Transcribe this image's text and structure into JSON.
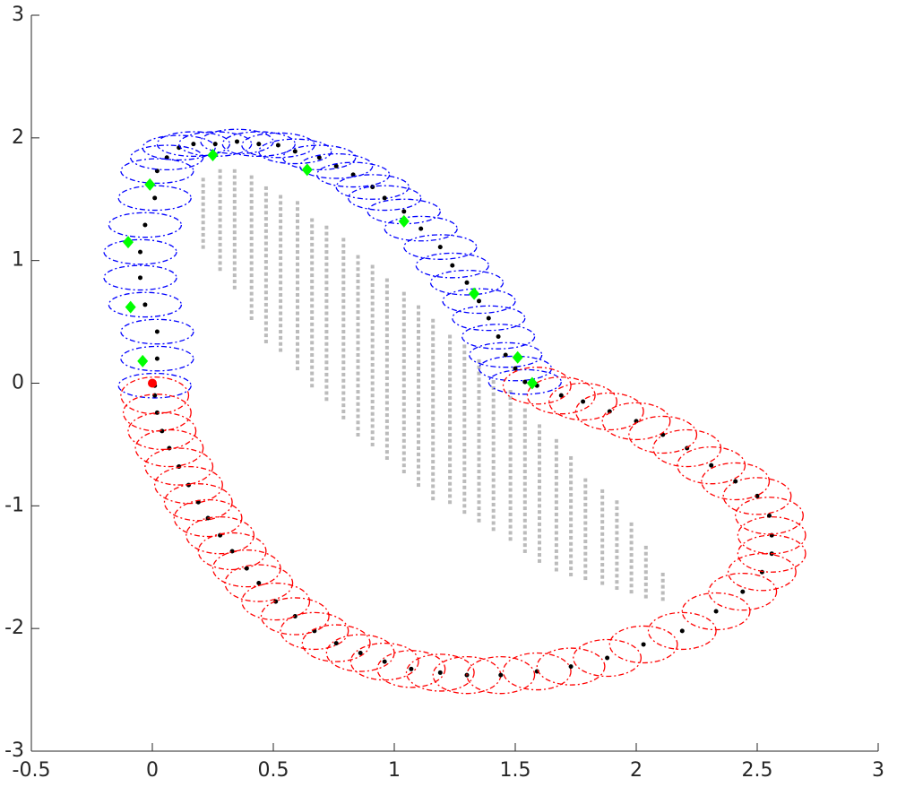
{
  "chart_data": {
    "type": "scatter",
    "xlim": [
      -0.5,
      3
    ],
    "ylim": [
      -3,
      3
    ],
    "xticks": [
      -0.5,
      0,
      0.5,
      1,
      1.5,
      2,
      2.5,
      3
    ],
    "yticks": [
      -3,
      -2,
      -1,
      0,
      1,
      2,
      3
    ],
    "series": [
      {
        "color": "#0000ff",
        "marker": "ellipse",
        "center_color": "#000000",
        "ellipse_width": 0.3,
        "ellipse_height": 0.2,
        "x": [
          0.01,
          0.02,
          0.02,
          -0.03,
          -0.05,
          -0.05,
          -0.03,
          0.01,
          0.02,
          0.06,
          0.11,
          0.17,
          0.26,
          0.35,
          0.44,
          0.52,
          0.59,
          0.69,
          0.76,
          0.83,
          0.91,
          0.96,
          1.04,
          1.11,
          1.19,
          1.24,
          1.3,
          1.35,
          1.39,
          1.43,
          1.46,
          1.5,
          1.54
        ],
        "y": [
          -0.02,
          0.2,
          0.42,
          0.64,
          0.86,
          1.07,
          1.29,
          1.51,
          1.73,
          1.84,
          1.92,
          1.95,
          1.95,
          1.97,
          1.95,
          1.94,
          1.89,
          1.84,
          1.77,
          1.7,
          1.6,
          1.51,
          1.4,
          1.26,
          1.11,
          0.96,
          0.82,
          0.67,
          0.53,
          0.38,
          0.23,
          0.12,
          0.01
        ]
      },
      {
        "color": "#ff0000",
        "marker": "ellipse",
        "center_color": "#000000",
        "ellipse_width": 0.28,
        "ellipse_height": 0.3,
        "x": [
          0.01,
          0.02,
          0.04,
          0.07,
          0.11,
          0.15,
          0.19,
          0.23,
          0.28,
          0.33,
          0.39,
          0.44,
          0.51,
          0.59,
          0.67,
          0.76,
          0.86,
          0.96,
          1.07,
          1.19,
          1.3,
          1.44,
          1.59,
          1.73,
          1.88,
          2.03,
          2.19,
          2.33,
          2.44,
          2.52,
          2.56,
          2.56,
          2.55,
          2.5,
          2.41,
          2.31,
          2.21,
          2.11,
          2.0,
          1.89,
          1.78,
          1.69,
          1.59
        ],
        "y": [
          -0.1,
          -0.24,
          -0.39,
          -0.53,
          -0.68,
          -0.83,
          -0.97,
          -1.1,
          -1.24,
          -1.37,
          -1.51,
          -1.63,
          -1.78,
          -1.9,
          -2.02,
          -2.12,
          -2.2,
          -2.27,
          -2.33,
          -2.36,
          -2.38,
          -2.38,
          -2.35,
          -2.31,
          -2.24,
          -2.13,
          -2.02,
          -1.86,
          -1.7,
          -1.54,
          -1.39,
          -1.24,
          -1.08,
          -0.92,
          -0.8,
          -0.67,
          -0.53,
          -0.42,
          -0.31,
          -0.23,
          -0.15,
          -0.1,
          -0.02
        ]
      },
      {
        "color": "#00ff00",
        "marker": "diamond",
        "x": [
          -0.04,
          -0.09,
          -0.1,
          -0.01,
          0.25,
          0.64,
          1.04,
          1.33,
          1.51,
          1.57
        ],
        "y": [
          0.18,
          0.62,
          1.15,
          1.62,
          1.86,
          1.74,
          1.32,
          0.73,
          0.21,
          0.0
        ]
      },
      {
        "color": "#ff0000",
        "marker": "circle",
        "x": [
          0
        ],
        "y": [
          0
        ]
      }
    ],
    "obstacle": {
      "color": "#bbbbbb",
      "ystep": 0.05,
      "x": [
        0.21,
        0.28,
        0.34,
        0.41,
        0.47,
        0.53,
        0.6,
        0.66,
        0.72,
        0.79,
        0.85,
        0.91,
        0.97,
        1.04,
        1.1,
        1.16,
        1.23,
        1.29,
        1.35,
        1.41,
        1.48,
        1.54,
        1.6,
        1.67,
        1.73,
        1.79,
        1.86,
        1.92,
        1.98,
        2.04,
        2.11
      ],
      "ymin": [
        1.11,
        0.93,
        0.78,
        0.53,
        0.34,
        0.27,
        0.12,
        -0.02,
        -0.13,
        -0.28,
        -0.42,
        -0.5,
        -0.61,
        -0.72,
        -0.83,
        -0.94,
        -0.97,
        -1.05,
        -1.12,
        -1.19,
        -1.27,
        -1.37,
        -1.45,
        -1.52,
        -1.56,
        -1.59,
        -1.63,
        -1.67,
        -1.7,
        -1.74,
        -1.76
      ],
      "ymax": [
        1.7,
        1.73,
        1.77,
        1.7,
        1.62,
        1.55,
        1.48,
        1.37,
        1.29,
        1.18,
        1.07,
        0.96,
        0.86,
        0.75,
        0.64,
        0.53,
        0.42,
        0.31,
        0.2,
        0.05,
        -0.06,
        -0.2,
        -0.31,
        -0.46,
        -0.61,
        -0.75,
        -0.86,
        -0.97,
        -1.15,
        -1.34,
        -1.56
      ]
    }
  }
}
